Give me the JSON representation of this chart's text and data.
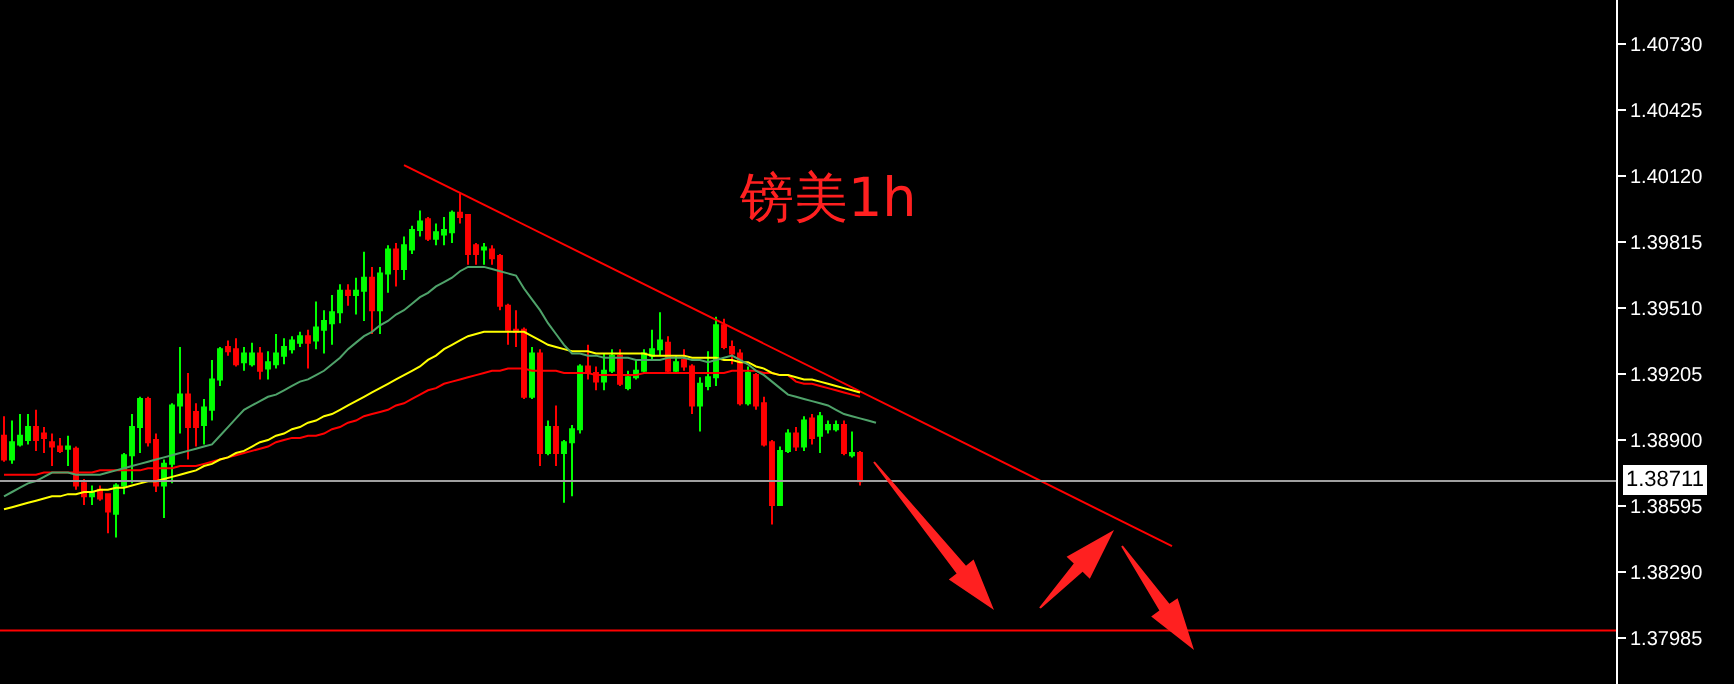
{
  "chart_data": {
    "type": "candlestick",
    "annotations": [
      "镑美1h"
    ],
    "categories": [
      null,
      null,
      null,
      null,
      null,
      null,
      null,
      null,
      null,
      null,
      null,
      null,
      null,
      null,
      null,
      null,
      null,
      null,
      null,
      null,
      null,
      null,
      null,
      null,
      null,
      null,
      null,
      null,
      null,
      null,
      null,
      null,
      null,
      null,
      null,
      null,
      null,
      null,
      null,
      null,
      null,
      null,
      null,
      null,
      null,
      null,
      null,
      null,
      null,
      null,
      null,
      null,
      null,
      null,
      null,
      null,
      null,
      null,
      null,
      null,
      null,
      null,
      null,
      null,
      null,
      null,
      null,
      null,
      null,
      null,
      null,
      null,
      null,
      null,
      null,
      null,
      null,
      null,
      null,
      null,
      null,
      null,
      null,
      null,
      null,
      null,
      null,
      null,
      null,
      null,
      null,
      null,
      null,
      null,
      null,
      null,
      null,
      null,
      null,
      null,
      null,
      null,
      null,
      null,
      null,
      null,
      null,
      null,
      null,
      null,
      null,
      null,
      null,
      null,
      null,
      null,
      null,
      null,
      null,
      null,
      null,
      null,
      null,
      null,
      null,
      null,
      null,
      null,
      null,
      null,
      null,
      null,
      null,
      null,
      null,
      null,
      null,
      null,
      null,
      null,
      null,
      null,
      null,
      null,
      null,
      null,
      null,
      null,
      null,
      null,
      null,
      null,
      null,
      null,
      null,
      null,
      null,
      null,
      null,
      null,
      null,
      null,
      null,
      null,
      null,
      null,
      null,
      null,
      null,
      null,
      null,
      null,
      null,
      null,
      null,
      null,
      null,
      null,
      null,
      null,
      null,
      null,
      null,
      null,
      null,
      null,
      null,
      null,
      null,
      null,
      null,
      null,
      null,
      null,
      null,
      null,
      null,
      null,
      null,
      null,
      null,
      null
    ],
    "ohlc": [
      [
        1.3892,
        1.3901,
        1.388,
        1.3881
      ],
      [
        1.3881,
        1.3899,
        1.3879,
        1.3889
      ],
      [
        1.3888,
        1.3902,
        1.3887,
        1.3892
      ],
      [
        1.389,
        1.3902,
        1.3888,
        1.3896
      ],
      [
        1.3896,
        1.3904,
        1.3885,
        1.389
      ],
      [
        1.3893,
        1.3896,
        1.3884,
        1.3891
      ],
      [
        1.3889,
        1.3893,
        1.3878,
        1.3887
      ],
      [
        1.3887,
        1.3891,
        1.3884,
        1.3885
      ],
      [
        1.3886,
        1.3892,
        1.3878,
        1.3887
      ],
      [
        1.3886,
        1.3887,
        1.3867,
        1.3869
      ],
      [
        1.387,
        1.3872,
        1.386,
        1.3864
      ],
      [
        1.3864,
        1.3869,
        1.386,
        1.3866
      ],
      [
        1.3867,
        1.3869,
        1.3862,
        1.3863
      ],
      [
        1.3865,
        1.3865,
        1.3847,
        1.3857
      ],
      [
        1.3856,
        1.387,
        1.3845,
        1.3869
      ],
      [
        1.3869,
        1.3884,
        1.3865,
        1.3883
      ],
      [
        1.3883,
        1.3902,
        1.387,
        1.3896
      ],
      [
        1.3896,
        1.391,
        1.3884,
        1.3909
      ],
      [
        1.3909,
        1.391,
        1.3887,
        1.3889
      ],
      [
        1.389,
        1.3893,
        1.3866,
        1.3869
      ],
      [
        1.3869,
        1.3881,
        1.3854,
        1.3879
      ],
      [
        1.3879,
        1.3907,
        1.387,
        1.3906
      ],
      [
        1.3906,
        1.3933,
        1.3893,
        1.3911
      ],
      [
        1.3911,
        1.3921,
        1.3881,
        1.3896
      ],
      [
        1.3903,
        1.3907,
        1.3887,
        1.3896
      ],
      [
        1.3897,
        1.3909,
        1.3888,
        1.3905
      ],
      [
        1.3904,
        1.3927,
        1.3899,
        1.3918
      ],
      [
        1.3918,
        1.3933,
        1.3915,
        1.3932
      ],
      [
        1.3933,
        1.3936,
        1.3929,
        1.3931
      ],
      [
        1.3932,
        1.3937,
        1.3924,
        1.3925
      ],
      [
        1.3926,
        1.3933,
        1.3922,
        1.393
      ],
      [
        1.3925,
        1.3935,
        1.3924,
        1.393
      ],
      [
        1.393,
        1.3933,
        1.3918,
        1.3922
      ],
      [
        1.3923,
        1.3931,
        1.3918,
        1.3926
      ],
      [
        1.3925,
        1.3939,
        1.3923,
        1.393
      ],
      [
        1.3929,
        1.3937,
        1.3925,
        1.3933
      ],
      [
        1.3932,
        1.3938,
        1.393,
        1.3936
      ],
      [
        1.3935,
        1.394,
        1.3933,
        1.3938
      ],
      [
        1.3938,
        1.3941,
        1.3923,
        1.3935
      ],
      [
        1.3936,
        1.3954,
        1.3932,
        1.3942
      ],
      [
        1.3941,
        1.395,
        1.393,
        1.3945
      ],
      [
        1.3944,
        1.3957,
        1.3934,
        1.3949
      ],
      [
        1.3949,
        1.3962,
        1.3944,
        1.3959
      ],
      [
        1.3959,
        1.3962,
        1.3952,
        1.3957
      ],
      [
        1.3957,
        1.3965,
        1.3948,
        1.3959
      ],
      [
        1.3959,
        1.3977,
        1.3945,
        1.3965
      ],
      [
        1.3965,
        1.397,
        1.3939,
        1.395
      ],
      [
        1.395,
        1.397,
        1.3939,
        1.3967
      ],
      [
        1.3967,
        1.398,
        1.3958,
        1.3978
      ],
      [
        1.3978,
        1.3981,
        1.3961,
        1.3969
      ],
      [
        1.3969,
        1.3984,
        1.3964,
        1.398
      ],
      [
        1.3978,
        1.3989,
        1.3976,
        1.3987
      ],
      [
        1.3987,
        1.3996,
        1.3984,
        1.3991
      ],
      [
        1.3992,
        1.3993,
        1.3982,
        1.3983
      ],
      [
        1.3983,
        1.399,
        1.398,
        1.3986
      ],
      [
        1.3985,
        1.3993,
        1.398,
        1.3987
      ],
      [
        1.3986,
        1.3996,
        1.3981,
        1.3995
      ],
      [
        1.3995,
        1.4004,
        1.399,
        1.3993
      ],
      [
        1.3994,
        1.3994,
        1.3971,
        1.3976
      ],
      [
        1.398,
        1.3981,
        1.3971,
        1.3976
      ],
      [
        1.3978,
        1.3981,
        1.3971,
        1.3979
      ],
      [
        1.3978,
        1.398,
        1.3971,
        1.3974
      ],
      [
        1.3975,
        1.3976,
        1.395,
        1.3952
      ],
      [
        1.3952,
        1.3953,
        1.3934,
        1.3941
      ],
      [
        1.3941,
        1.395,
        1.3933,
        1.394
      ],
      [
        1.3941,
        1.3942,
        1.3909,
        1.391
      ],
      [
        1.391,
        1.3933,
        1.3909,
        1.393
      ],
      [
        1.393,
        1.3932,
        1.3878,
        1.3884
      ],
      [
        1.3884,
        1.3899,
        1.3883,
        1.3896
      ],
      [
        1.3896,
        1.3906,
        1.3878,
        1.3884
      ],
      [
        1.3884,
        1.389,
        1.3861,
        1.3889
      ],
      [
        1.3889,
        1.3897,
        1.3864,
        1.3895
      ],
      [
        1.3895,
        1.3925,
        1.3893,
        1.3924
      ],
      [
        1.3924,
        1.3934,
        1.3918,
        1.3921
      ],
      [
        1.3921,
        1.3924,
        1.3913,
        1.3917
      ],
      [
        1.3917,
        1.393,
        1.3913,
        1.3922
      ],
      [
        1.3922,
        1.3932,
        1.3921,
        1.3929
      ],
      [
        1.3929,
        1.3932,
        1.3915,
        1.3916
      ],
      [
        1.3914,
        1.3922,
        1.3913,
        1.3919
      ],
      [
        1.3919,
        1.3927,
        1.3918,
        1.3922
      ],
      [
        1.3922,
        1.3932,
        1.3921,
        1.393
      ],
      [
        1.3929,
        1.3941,
        1.3927,
        1.3932
      ],
      [
        1.3932,
        1.3949,
        1.3929,
        1.3936
      ],
      [
        1.3935,
        1.3938,
        1.3921,
        1.3922
      ],
      [
        1.3922,
        1.3929,
        1.3921,
        1.3926
      ],
      [
        1.3927,
        1.3932,
        1.3922,
        1.3924
      ],
      [
        1.3924,
        1.3925,
        1.3902,
        1.3906
      ],
      [
        1.3906,
        1.3919,
        1.3894,
        1.3916
      ],
      [
        1.3915,
        1.3931,
        1.3913,
        1.3919
      ],
      [
        1.3919,
        1.3947,
        1.3915,
        1.3943
      ],
      [
        1.3943,
        1.3946,
        1.3932,
        1.3933
      ],
      [
        1.3933,
        1.3936,
        1.3925,
        1.393
      ],
      [
        1.393,
        1.3932,
        1.3906,
        1.3907
      ],
      [
        1.3907,
        1.3924,
        1.3906,
        1.3921
      ],
      [
        1.392,
        1.3921,
        1.3904,
        1.3906
      ],
      [
        1.3907,
        1.391,
        1.3887,
        1.3888
      ],
      [
        1.3889,
        1.389,
        1.3851,
        1.386
      ],
      [
        1.386,
        1.3887,
        1.386,
        1.3885
      ],
      [
        1.3885,
        1.3895,
        1.3884,
        1.3893
      ],
      [
        1.3893,
        1.3896,
        1.3885,
        1.3887
      ],
      [
        1.3887,
        1.3901,
        1.3885,
        1.3899
      ],
      [
        1.39,
        1.3902,
        1.3888,
        1.3891
      ],
      [
        1.3892,
        1.3903,
        1.3884,
        1.3901
      ],
      [
        1.3895,
        1.3899,
        1.3893,
        1.3897
      ],
      [
        1.3895,
        1.3899,
        1.3894,
        1.3897
      ],
      [
        1.3897,
        1.3899,
        1.3883,
        1.3884
      ],
      [
        1.3883,
        1.3894,
        1.3882,
        1.3884
      ],
      [
        1.3884,
        1.3885,
        1.3869,
        1.3871
      ],
      null,
      null,
      null,
      null,
      null,
      null,
      null,
      null,
      null,
      null,
      null,
      null,
      null,
      null,
      null,
      null,
      null,
      null,
      null,
      null,
      null,
      null,
      null,
      null,
      null,
      null,
      null,
      null,
      null,
      null,
      null,
      null,
      null,
      null,
      null,
      null,
      null,
      null,
      null,
      null,
      null,
      null,
      null,
      null,
      null,
      null,
      null,
      null,
      null,
      null,
      null,
      null,
      null,
      null,
      null,
      null,
      null,
      null,
      null,
      null,
      null,
      null,
      null,
      null,
      null,
      null,
      null,
      null,
      null,
      null,
      null,
      null,
      null,
      null,
      null,
      null,
      null,
      null,
      null,
      null,
      null,
      null,
      null,
      null,
      null,
      null,
      null,
      null,
      null,
      null,
      null,
      null,
      null,
      null
    ],
    "series": [
      {
        "type": "line",
        "color": "#4fa36a",
        "values": [
          1.3864,
          1.3866,
          1.3868,
          1.387,
          1.3871,
          1.3873,
          1.3875,
          1.3875,
          1.3875,
          1.3874,
          1.3874,
          1.3874,
          1.3874,
          1.3875,
          1.3876,
          1.3877,
          1.3878,
          1.3879,
          1.388,
          1.3881,
          1.3882,
          1.3883,
          1.3884,
          1.3885,
          1.3886,
          1.3887,
          1.3888,
          1.3892,
          1.3896,
          1.39,
          1.3904,
          1.3906,
          1.3908,
          1.391,
          1.3911,
          1.3913,
          1.3915,
          1.3917,
          1.3918,
          1.392,
          1.3922,
          1.3925,
          1.3928,
          1.3932,
          1.3935,
          1.3938,
          1.394,
          1.3943,
          1.3945,
          1.3948,
          1.395,
          1.3953,
          1.3956,
          1.3958,
          1.3961,
          1.3963,
          1.3965,
          1.3968,
          1.397,
          1.397,
          1.397,
          1.3969,
          1.3968,
          1.3967,
          1.3966,
          1.396,
          1.3955,
          1.395,
          1.3944,
          1.3939,
          1.3934,
          1.393,
          1.393,
          1.3929,
          1.3929,
          1.3928,
          1.3928,
          1.3928,
          1.3928,
          1.3927,
          1.3927,
          1.3927,
          1.3927,
          1.3928,
          1.3928,
          1.3928,
          1.3927,
          1.3927,
          1.3926,
          1.3927,
          1.3928,
          1.3929,
          1.3927,
          1.3925,
          1.3922,
          1.392,
          1.3917,
          1.3914,
          1.3911,
          1.391,
          1.3909,
          1.3908,
          1.3907,
          1.3906,
          1.3904,
          1.3902,
          1.3901,
          1.39,
          1.3899,
          1.3898,
          null,
          null,
          null,
          null,
          null,
          null,
          null,
          null,
          null,
          null,
          null,
          null,
          null,
          null,
          null,
          null,
          null,
          null,
          null,
          null,
          null,
          null,
          null,
          null,
          null,
          null,
          null,
          null,
          null,
          null,
          null,
          null,
          null,
          null,
          null,
          null,
          null,
          null,
          null,
          null,
          null,
          null,
          null,
          null,
          null,
          null,
          null,
          null,
          null,
          null,
          null,
          null,
          null,
          null,
          null,
          null,
          null,
          null,
          null,
          null,
          null,
          null,
          null,
          null,
          null,
          null,
          null,
          null,
          null,
          null,
          null,
          null,
          null,
          null,
          null,
          null,
          null,
          null,
          null,
          null,
          null,
          null,
          null,
          null,
          null,
          null,
          null,
          null,
          null,
          null,
          null,
          null
        ]
      },
      {
        "type": "line",
        "color": "#ffff00",
        "values": [
          1.3858,
          1.3859,
          1.386,
          1.3861,
          1.3862,
          1.3863,
          1.3864,
          1.3864,
          1.3865,
          1.3865,
          1.3866,
          1.3866,
          1.3867,
          1.3867,
          1.3868,
          1.3868,
          1.3869,
          1.387,
          1.3871,
          1.3871,
          1.3872,
          1.3873,
          1.3874,
          1.3875,
          1.3876,
          1.3878,
          1.3879,
          1.3881,
          1.3882,
          1.3884,
          1.3885,
          1.3887,
          1.3889,
          1.389,
          1.3892,
          1.3893,
          1.3895,
          1.3896,
          1.3898,
          1.3899,
          1.3901,
          1.3902,
          1.3904,
          1.3906,
          1.3908,
          1.391,
          1.3912,
          1.3914,
          1.3916,
          1.3918,
          1.392,
          1.3922,
          1.3924,
          1.3927,
          1.3929,
          1.3932,
          1.3934,
          1.3936,
          1.3938,
          1.3939,
          1.394,
          1.394,
          1.394,
          1.394,
          1.394,
          1.394,
          1.3938,
          1.3936,
          1.3934,
          1.3933,
          1.3932,
          1.3931,
          1.3931,
          1.3931,
          1.393,
          1.393,
          1.393,
          1.393,
          1.393,
          1.393,
          1.393,
          1.3929,
          1.3929,
          1.3929,
          1.3929,
          1.3929,
          1.3928,
          1.3928,
          1.3928,
          1.3928,
          1.3927,
          1.3927,
          1.3926,
          1.3926,
          1.3924,
          1.3923,
          1.3921,
          1.392,
          1.392,
          1.3919,
          1.3918,
          1.3918,
          1.3917,
          1.3916,
          1.3915,
          1.3914,
          1.3913,
          1.3912,
          null,
          null,
          null,
          null,
          null,
          null,
          null,
          null,
          null,
          null,
          null,
          null,
          null,
          null,
          null,
          null,
          null,
          null,
          null,
          null,
          null,
          null,
          null,
          null,
          null,
          null,
          null,
          null,
          null,
          null,
          null,
          null,
          null,
          null,
          null,
          null,
          null,
          null,
          null,
          null,
          null,
          null,
          null,
          null,
          null,
          null,
          null,
          null,
          null,
          null,
          null,
          null,
          null,
          null,
          null,
          null,
          null,
          null,
          null,
          null,
          null,
          null,
          null,
          null,
          null,
          null,
          null,
          null,
          null,
          null,
          null,
          null,
          null,
          null,
          null,
          null,
          null,
          null,
          null,
          null,
          null,
          null,
          null,
          null,
          null,
          null,
          null,
          null,
          null,
          null,
          null,
          null,
          null,
          null
        ]
      },
      {
        "type": "line",
        "color": "#ff0000",
        "values": [
          1.3874,
          1.3874,
          1.3874,
          1.3874,
          1.3874,
          1.3875,
          1.3875,
          1.3875,
          1.3875,
          1.3875,
          1.3875,
          1.3875,
          1.3876,
          1.3876,
          1.3876,
          1.3876,
          1.3876,
          1.3876,
          1.3877,
          1.3877,
          1.3877,
          1.3877,
          1.3878,
          1.3878,
          1.3878,
          1.3879,
          1.388,
          1.3881,
          1.3882,
          1.3883,
          1.3884,
          1.3885,
          1.3886,
          1.3887,
          1.3889,
          1.389,
          1.3891,
          1.3891,
          1.3892,
          1.3892,
          1.3893,
          1.3895,
          1.3896,
          1.3898,
          1.3899,
          1.3901,
          1.3902,
          1.3903,
          1.3904,
          1.3906,
          1.3907,
          1.3909,
          1.3911,
          1.3913,
          1.3914,
          1.3916,
          1.3917,
          1.3918,
          1.3919,
          1.392,
          1.3921,
          1.3922,
          1.3922,
          1.3923,
          1.3923,
          1.3923,
          1.3922,
          1.3922,
          1.3922,
          1.3922,
          1.3921,
          1.3921,
          1.3921,
          1.3921,
          1.392,
          1.392,
          1.392,
          1.392,
          1.392,
          1.392,
          1.3921,
          1.3921,
          1.3921,
          1.3921,
          1.3921,
          1.3921,
          1.3921,
          1.3921,
          1.3921,
          1.3921,
          1.3921,
          1.3922,
          1.3922,
          1.3922,
          1.3922,
          1.3921,
          1.3921,
          1.392,
          1.392,
          1.3917,
          1.3916,
          1.3916,
          1.3915,
          1.3914,
          1.3913,
          1.3912,
          1.3911,
          1.391,
          null,
          null,
          null,
          null,
          null,
          null,
          null,
          null,
          null,
          null,
          null,
          null,
          null,
          null,
          null,
          null,
          null,
          null,
          null,
          null,
          null,
          null,
          null,
          null,
          null,
          null,
          null,
          null,
          null,
          null,
          null,
          null,
          null,
          null,
          null,
          null,
          null,
          null,
          null,
          null,
          null,
          null,
          null,
          null,
          null,
          null,
          null,
          null,
          null,
          null,
          null,
          null,
          null,
          null,
          null,
          null,
          null,
          null,
          null,
          null,
          null,
          null,
          null,
          null,
          null,
          null,
          null,
          null,
          null,
          null,
          null,
          null,
          null,
          null,
          null,
          null,
          null,
          null,
          null,
          null,
          null,
          null,
          null,
          null,
          null,
          null,
          null,
          null,
          null,
          null,
          null,
          null,
          null,
          null
        ]
      },
      {
        "type": "line",
        "color": "#ff0000",
        "values": [
          null,
          null,
          null,
          null,
          null,
          null,
          null,
          null,
          null,
          null,
          null,
          null,
          null,
          null,
          null,
          null,
          null,
          null,
          null,
          null,
          null,
          null,
          null,
          null,
          null,
          null,
          null,
          null,
          null,
          null,
          null,
          null,
          null,
          null,
          null,
          null,
          null,
          null,
          null,
          null,
          null,
          null,
          null,
          null,
          null,
          null,
          null,
          null,
          null,
          null,
          1.4017,
          null,
          null,
          null,
          null,
          null,
          null,
          null,
          null,
          null,
          null,
          null,
          null,
          null,
          null,
          null,
          null,
          null,
          null,
          null,
          null,
          null,
          null,
          null,
          null,
          null,
          null,
          null,
          null,
          null,
          null,
          null,
          null,
          null,
          null,
          null,
          null,
          null,
          null,
          null,
          null,
          null,
          null,
          null,
          null,
          null,
          null,
          null,
          null,
          null,
          null,
          null,
          null,
          null,
          null,
          null,
          null,
          null,
          null,
          null,
          null,
          null,
          null,
          null,
          null,
          null,
          null,
          null,
          null,
          null,
          null,
          null,
          null,
          null,
          null,
          null,
          null,
          null,
          null,
          null,
          null,
          null,
          null,
          null,
          null,
          null,
          null,
          null,
          null,
          null,
          null,
          null,
          null,
          null,
          null,
          null,
          1.3841,
          null,
          null,
          null,
          null,
          null,
          null,
          null,
          null,
          null,
          null,
          null,
          null,
          null,
          null,
          null,
          null,
          null,
          null,
          null,
          null,
          null,
          null,
          null,
          null,
          null,
          null,
          null,
          null,
          null,
          null,
          null,
          null,
          null,
          null,
          null,
          null,
          null,
          null,
          null,
          null,
          null,
          null,
          null,
          null,
          null,
          null,
          null,
          null,
          null,
          null,
          null,
          null,
          null,
          null,
          null
        ]
      }
    ],
    "ref_lines": [
      {
        "axis": "y",
        "value": 1.38711,
        "label": "1.38711",
        "color": "#a0a0a0"
      },
      {
        "axis": "y",
        "value": 1.3802,
        "color": "#ff0000"
      }
    ],
    "ylim": [
      1.37773,
      1.40933
    ],
    "yticks": [
      {
        "value": 1.4073,
        "label": "1.40730"
      },
      {
        "value": 1.40425,
        "label": "1.40425"
      },
      {
        "value": 1.4012,
        "label": "1.40120"
      },
      {
        "value": 1.39815,
        "label": "1.39815"
      },
      {
        "value": 1.3951,
        "label": "1.39510"
      },
      {
        "value": 1.39205,
        "label": "1.39205"
      },
      {
        "value": 1.389,
        "label": "1.38900"
      },
      {
        "value": 1.38595,
        "label": "1.38595"
      },
      {
        "value": 1.3829,
        "label": "1.38290"
      },
      {
        "value": 1.37985,
        "label": "1.37985"
      }
    ]
  }
}
